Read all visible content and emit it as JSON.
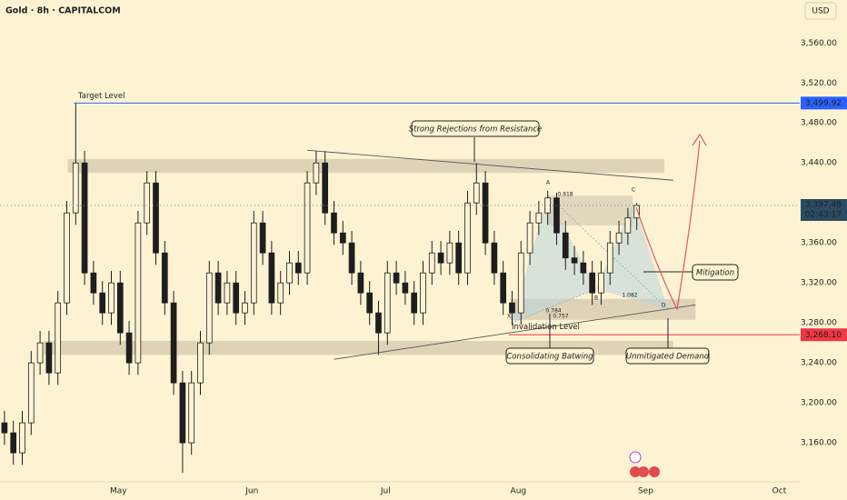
{
  "header": {
    "title": "Gold · 8h · CAPITALCOM",
    "currency": "USD"
  },
  "chart_data": {
    "type": "candlestick",
    "open": [
      3180,
      3170,
      3150,
      3180,
      3240,
      3260,
      3230,
      3300,
      3390,
      3440,
      3330,
      3310,
      3290,
      3320,
      3270,
      3240,
      3380,
      3420,
      3350,
      3300,
      3220,
      3160,
      3220,
      3260,
      3330,
      3300,
      3320,
      3290,
      3300,
      3380,
      3350,
      3300,
      3320,
      3340,
      3330,
      3420,
      3440,
      3390,
      3370,
      3360,
      3330,
      3310,
      3290,
      3270,
      3330,
      3320,
      3310,
      3290,
      3330,
      3350,
      3340,
      3360,
      3330,
      3400,
      3420,
      3360,
      3330,
      3300,
      3290,
      3350,
      3380,
      3390,
      3405,
      3370,
      3345,
      3340,
      3330,
      3310,
      3330,
      3360,
      3370,
      3385
    ],
    "high": [
      3192,
      3182,
      3192,
      3252,
      3272,
      3272,
      3312,
      3402,
      3499.92,
      3452,
      3342,
      3322,
      3332,
      3332,
      3282,
      3392,
      3432,
      3432,
      3362,
      3312,
      3232,
      3232,
      3272,
      3342,
      3342,
      3332,
      3332,
      3312,
      3392,
      3392,
      3362,
      3332,
      3352,
      3352,
      3432,
      3452,
      3452,
      3402,
      3382,
      3372,
      3342,
      3322,
      3302,
      3342,
      3342,
      3332,
      3322,
      3342,
      3362,
      3362,
      3372,
      3372,
      3412,
      3440,
      3432,
      3372,
      3342,
      3312,
      3362,
      3392,
      3402,
      3412,
      3410,
      3382,
      3357,
      3352,
      3342,
      3342,
      3372,
      3382,
      3395,
      3400
    ],
    "low": [
      3158,
      3138,
      3138,
      3168,
      3228,
      3218,
      3218,
      3288,
      3378,
      3318,
      3298,
      3278,
      3278,
      3258,
      3228,
      3228,
      3368,
      3338,
      3288,
      3208,
      3130,
      3148,
      3208,
      3248,
      3288,
      3288,
      3278,
      3278,
      3288,
      3338,
      3288,
      3288,
      3308,
      3318,
      3318,
      3408,
      3378,
      3358,
      3348,
      3318,
      3298,
      3278,
      3248,
      3258,
      3308,
      3298,
      3278,
      3278,
      3318,
      3328,
      3328,
      3318,
      3318,
      3388,
      3348,
      3318,
      3288,
      3278,
      3278,
      3338,
      3368,
      3378,
      3358,
      3333,
      3328,
      3318,
      3298,
      3298,
      3318,
      3348,
      3358,
      3373
    ],
    "close": [
      3170,
      3150,
      3180,
      3240,
      3260,
      3230,
      3300,
      3390,
      3440,
      3330,
      3310,
      3290,
      3320,
      3270,
      3240,
      3380,
      3420,
      3350,
      3300,
      3220,
      3160,
      3220,
      3260,
      3330,
      3300,
      3320,
      3290,
      3300,
      3380,
      3350,
      3300,
      3320,
      3340,
      3330,
      3420,
      3440,
      3390,
      3370,
      3360,
      3330,
      3310,
      3290,
      3270,
      3330,
      3320,
      3310,
      3290,
      3330,
      3350,
      3340,
      3360,
      3330,
      3400,
      3420,
      3360,
      3330,
      3300,
      3290,
      3350,
      3380,
      3390,
      3405,
      3370,
      3345,
      3340,
      3330,
      3310,
      3330,
      3360,
      3370,
      3385,
      3397.48
    ],
    "up_color": "#fdf3d3",
    "down_color": "#1e1e1e",
    "xlim": [
      -0.5,
      89.3
    ],
    "ylim": [
      3121,
      3603
    ],
    "grid": false,
    "yticks": [
      {
        "value": 3160,
        "label": "3,160.00"
      },
      {
        "value": 3200,
        "label": "3,200.00"
      },
      {
        "value": 3240,
        "label": "3,240.00"
      },
      {
        "value": 3280,
        "label": "3,280.00"
      },
      {
        "value": 3320,
        "label": "3,320.00"
      },
      {
        "value": 3360,
        "label": "3,360.00"
      },
      {
        "value": 3400,
        "label": "3,400.00"
      },
      {
        "value": 3440,
        "label": "3,440.00"
      },
      {
        "value": 3480,
        "label": "3,480.00"
      },
      {
        "value": 3520,
        "label": "3,520.00"
      },
      {
        "value": 3560,
        "label": "3,560.00"
      }
    ],
    "xticks": [
      {
        "value": 12.8,
        "label": "May"
      },
      {
        "value": 27.8,
        "label": "Jun"
      },
      {
        "value": 42.8,
        "label": "Jul"
      },
      {
        "value": 57.7,
        "label": "Aug"
      },
      {
        "value": 72,
        "label": "Sep"
      },
      {
        "value": 87,
        "label": "Oct"
      }
    ],
    "levels": [
      {
        "name": "Target Level",
        "value": 3499.92,
        "label": "3,499.92",
        "color": "#2962ff"
      },
      {
        "name": "Invalidation Level",
        "value": 3268.1,
        "label": "3,268.10",
        "color": "#f23645"
      }
    ],
    "last_price": {
      "value": 3397.48,
      "label": "3,397.48",
      "countdown": "02:43:17",
      "color": "#2b4a63"
    },
    "zones": [
      {
        "ylim": [
          3430,
          3444
        ],
        "xlim": [
          7.1,
          74.1
        ]
      },
      {
        "ylim": [
          3248,
          3262
        ],
        "xlim": [
          4.4,
          75.1
        ]
      },
      {
        "ylim": [
          3283,
          3304
        ],
        "xlim": [
          56.8,
          77.6
        ]
      }
    ],
    "trendlines": [
      {
        "x": [
          34.0,
          75.1
        ],
        "y": [
          3452.7,
          3422.7
        ]
      },
      {
        "x": [
          37.0,
          77.6
        ],
        "y": [
          3243.6,
          3298
        ]
      }
    ],
    "annotations": [
      "Strong Rejections from Resistance",
      "Mitigation",
      "Consolidating Batwing",
      "Unmitigated Demand"
    ],
    "harmonic": {
      "points": [
        "X",
        "A",
        "B",
        "C",
        "D"
      ],
      "ratios": [
        0.918,
        1.082,
        0.757,
        0.784
      ]
    }
  }
}
